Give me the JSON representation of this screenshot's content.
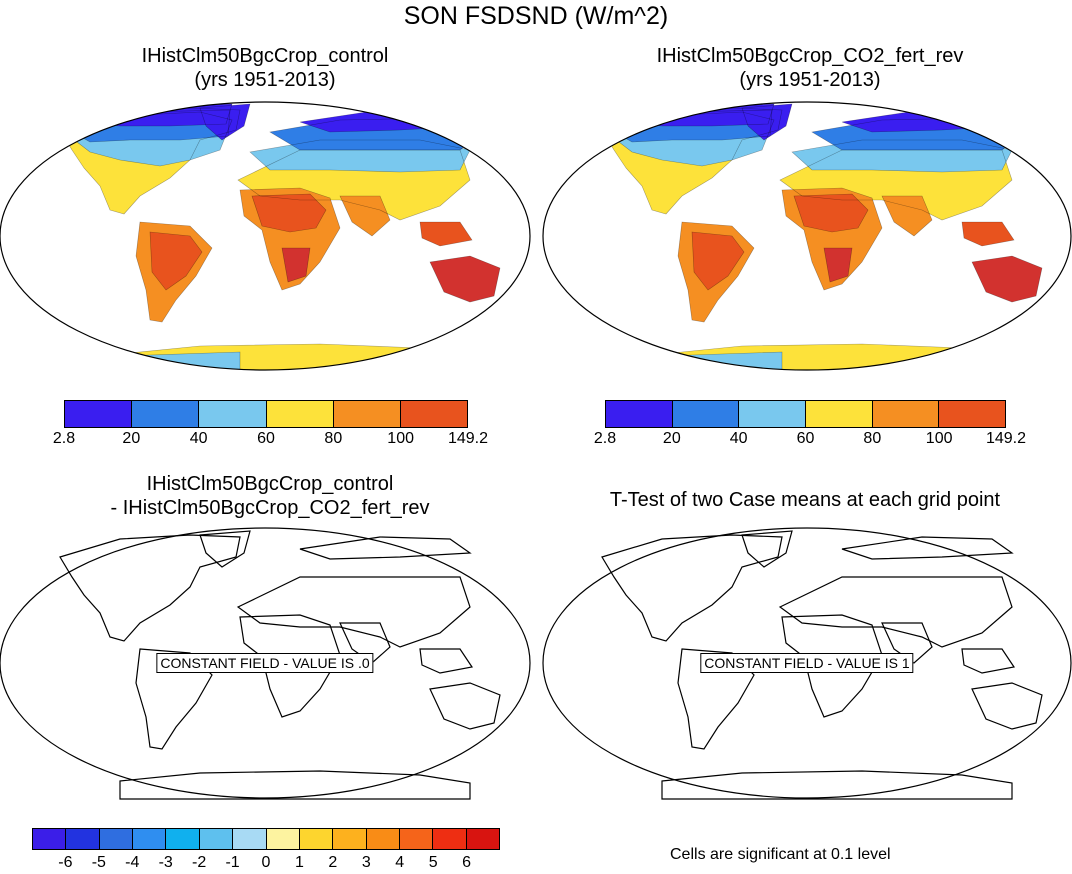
{
  "figure": {
    "title": "SON FSDSND (W/m^2)",
    "note": "Cells are significant at 0.1 level"
  },
  "panels": [
    {
      "title_lines": [
        "IHistClm50BgcCrop_control",
        "(yrs 1951-2013)"
      ],
      "fill": "climatology",
      "colorbar_labels": [
        "2.8",
        "20",
        "40",
        "60",
        "80",
        "100",
        "149.2"
      ]
    },
    {
      "title_lines": [
        "IHistClm50BgcCrop_CO2_fert_rev",
        "(yrs 1951-2013)"
      ],
      "fill": "climatology",
      "colorbar_labels": [
        "2.8",
        "20",
        "40",
        "60",
        "80",
        "100",
        "149.2"
      ]
    },
    {
      "title_lines": [
        "IHistClm50BgcCrop_control",
        "- IHistClm50BgcCrop_CO2_fert_rev"
      ],
      "fill": "none",
      "message": "CONSTANT FIELD - VALUE IS .0",
      "colorbar_labels": [
        "-6",
        "-5",
        "-4",
        "-3",
        "-2",
        "-1",
        "0",
        "1",
        "2",
        "3",
        "4",
        "5",
        "6"
      ]
    },
    {
      "title_lines": [
        "T-Test of two Case means at each grid point"
      ],
      "fill": "none",
      "message": "CONSTANT FIELD - VALUE IS 1"
    }
  ],
  "colorbars": {
    "climatology_colors": [
      "#3a1ef0",
      "#2f7ee6",
      "#79c8ee",
      "#fde23a",
      "#f58f22",
      "#e8531e",
      "#d2322f"
    ],
    "difference_colors": [
      "#3b1ee8",
      "#2233e0",
      "#2f6ee0",
      "#2f8ef0",
      "#10b0ee",
      "#5ec0ee",
      "#a8daf4",
      "#fdf3a0",
      "#fdd52e",
      "#fdb11e",
      "#f98c16",
      "#f5641a",
      "#ee2e12",
      "#d81410",
      "#c4282a"
    ]
  },
  "legend_colors": {
    "polar_band": "#3a1ef0",
    "high_lat": "#2f7ee6",
    "mid_high": "#79c8ee",
    "mid": "#fde23a",
    "subtropical": "#f58f22",
    "tropical": "#e8531e",
    "desert": "#d2322f"
  }
}
